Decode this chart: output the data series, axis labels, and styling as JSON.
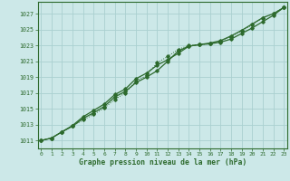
{
  "x": [
    0,
    1,
    2,
    3,
    4,
    5,
    6,
    7,
    8,
    9,
    10,
    11,
    12,
    13,
    14,
    15,
    16,
    17,
    18,
    19,
    20,
    21,
    22,
    23
  ],
  "line_solid1": [
    1011.0,
    1011.3,
    1012.1,
    1012.8,
    1013.8,
    1014.5,
    1015.3,
    1016.5,
    1017.2,
    1018.3,
    1019.0,
    1019.8,
    1021.0,
    1022.3,
    1022.9,
    1023.1,
    1023.2,
    1023.4,
    1023.8,
    1024.5,
    1025.2,
    1026.0,
    1026.8,
    1027.8
  ],
  "line_dotted": [
    1011.0,
    1011.3,
    1012.1,
    1012.8,
    1013.6,
    1014.3,
    1015.1,
    1016.2,
    1017.0,
    1018.5,
    1019.2,
    1020.8,
    1021.6,
    1022.5,
    1023.0,
    1023.1,
    1023.2,
    1023.5,
    1024.1,
    1024.8,
    1025.6,
    1026.5,
    1027.0,
    1027.8
  ],
  "line_solid2": [
    1011.0,
    1011.3,
    1012.1,
    1012.9,
    1014.0,
    1014.8,
    1015.6,
    1016.8,
    1017.5,
    1018.8,
    1019.5,
    1020.5,
    1021.2,
    1022.0,
    1022.9,
    1023.1,
    1023.3,
    1023.6,
    1024.2,
    1024.9,
    1025.7,
    1026.5,
    1027.0,
    1027.8
  ],
  "line_color": "#2d6a2d",
  "bg_color": "#cce8e8",
  "grid_color": "#aad0d0",
  "xlabel": "Graphe pression niveau de la mer (hPa)",
  "yticks": [
    1011,
    1013,
    1015,
    1017,
    1019,
    1021,
    1023,
    1025,
    1027
  ],
  "xticks": [
    0,
    1,
    2,
    3,
    4,
    5,
    6,
    7,
    8,
    9,
    10,
    11,
    12,
    13,
    14,
    15,
    16,
    17,
    18,
    19,
    20,
    21,
    22,
    23
  ],
  "ylim": [
    1010.0,
    1028.5
  ],
  "xlim": [
    -0.3,
    23.3
  ]
}
